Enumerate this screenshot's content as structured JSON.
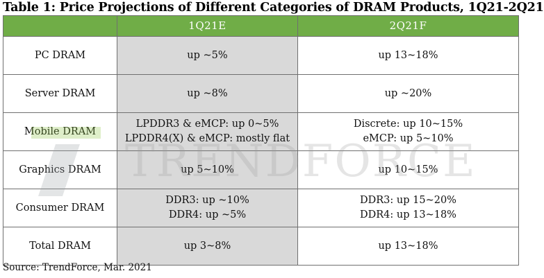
{
  "title": "Table 1: Price Projections of Different Categories of DRAM Products, 1Q21-2Q21",
  "header": {
    "col1": "1Q21E",
    "col2": "2Q21F"
  },
  "rows": [
    {
      "category": "PC DRAM",
      "q1": [
        "up ~5%"
      ],
      "q2": [
        "up 13~18%"
      ]
    },
    {
      "category": "Server DRAM",
      "q1": [
        "up ~8%"
      ],
      "q2": [
        "up ~20%"
      ]
    },
    {
      "category": "Mobile DRAM",
      "q1": [
        "LPDDR3 & eMCP: up 0~5%",
        "LPDDR4(X) & eMCP: mostly flat"
      ],
      "q2": [
        "Discrete: up 10~15%",
        "eMCP: up 5~10%"
      ]
    },
    {
      "category": "Graphics DRAM",
      "q1": [
        "up 5~10%"
      ],
      "q2": [
        "up 10~15%"
      ]
    },
    {
      "category": "Consumer DRAM",
      "q1": [
        "DDR3: up ~10%",
        "DDR4: up ~5%"
      ],
      "q2": [
        "DDR3: up 15~20%",
        "DDR4: up 13~18%"
      ]
    },
    {
      "category": "Total DRAM",
      "q1": [
        "up 3~8%"
      ],
      "q2": [
        "up 13~18%"
      ]
    }
  ],
  "watermark": "TRENDFORCE",
  "source": "Source: TrendForce, Mar. 2021",
  "colors": {
    "header_green": "#70ad47",
    "shaded_column": "#d9d9d9",
    "border": "#6f6f6f"
  }
}
